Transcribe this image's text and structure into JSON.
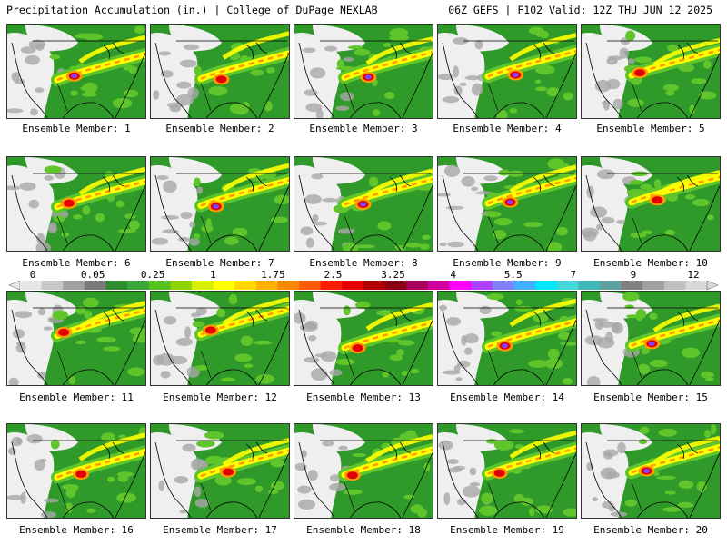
{
  "header": {
    "left": "Precipitation Accumulation (in.) | College of DuPage NEXLAB",
    "right": "06Z GEFS | F102 Valid: 12Z THU JUN 12 2025"
  },
  "members": [
    {
      "label": "Ensemble Member: 1",
      "peak": "purple"
    },
    {
      "label": "Ensemble Member: 2",
      "peak": "red"
    },
    {
      "label": "Ensemble Member: 3",
      "peak": "purple"
    },
    {
      "label": "Ensemble Member: 4",
      "peak": "purple"
    },
    {
      "label": "Ensemble Member: 5",
      "peak": "red"
    },
    {
      "label": "Ensemble Member: 6",
      "peak": "red"
    },
    {
      "label": "Ensemble Member: 7",
      "peak": "purple"
    },
    {
      "label": "Ensemble Member: 8",
      "peak": "purple"
    },
    {
      "label": "Ensemble Member: 9",
      "peak": "purple"
    },
    {
      "label": "Ensemble Member: 10",
      "peak": "red"
    },
    {
      "label": "Ensemble Member: 11",
      "peak": "red"
    },
    {
      "label": "Ensemble Member: 12",
      "peak": "red"
    },
    {
      "label": "Ensemble Member: 13",
      "peak": "red"
    },
    {
      "label": "Ensemble Member: 14",
      "peak": "purple"
    },
    {
      "label": "Ensemble Member: 15",
      "peak": "purple"
    },
    {
      "label": "Ensemble Member: 16",
      "peak": "red"
    },
    {
      "label": "Ensemble Member: 17",
      "peak": "red"
    },
    {
      "label": "Ensemble Member: 18",
      "peak": "red"
    },
    {
      "label": "Ensemble Member: 19",
      "peak": "red"
    },
    {
      "label": "Ensemble Member: 20",
      "peak": "purple"
    }
  ],
  "colorbar": {
    "labels": [
      "0",
      "0.05",
      "0.25",
      "1",
      "1.75",
      "2.5",
      "3.25",
      "4",
      "5.5",
      "7",
      "9",
      "12"
    ],
    "colors": [
      "#e6e6e6",
      "#c8c8c8",
      "#a0a0a0",
      "#7a7a7a",
      "#2e8b2e",
      "#3aa53a",
      "#55c21f",
      "#8fd400",
      "#d8ee00",
      "#ffff00",
      "#ffd800",
      "#ffb000",
      "#ff8a00",
      "#ff5a00",
      "#ff1e00",
      "#e60000",
      "#b40000",
      "#8b0012",
      "#a8005a",
      "#d2009c",
      "#ff00ff",
      "#b040ff",
      "#8080ff",
      "#40b0ff",
      "#00e8ff",
      "#40d8d8",
      "#40b8b8",
      "#60a0a0",
      "#808080",
      "#a0a0a0",
      "#c0c0c0",
      "#d8d8d8"
    ]
  },
  "legend_colors": {
    "light": "#efefef",
    "gray": "#a8a8a8",
    "green": "#2f9a2a",
    "lightgreen": "#5fc52a",
    "yellow": "#ffff00",
    "orange": "#ff9a00",
    "red": "#e00000",
    "purple": "#8040ff"
  }
}
